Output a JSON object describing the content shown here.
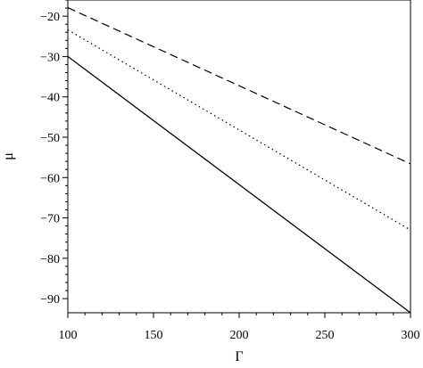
{
  "chart_data": {
    "type": "line",
    "title": "",
    "xlabel": "Γ",
    "ylabel": "μ",
    "xlim": [
      100,
      300
    ],
    "ylim": [
      -93.5,
      -16
    ],
    "x_ticks": [
      100,
      150,
      200,
      250,
      300
    ],
    "y_ticks": [
      -20,
      -30,
      -40,
      -50,
      -60,
      -70,
      -80,
      -90
    ],
    "x_tick_labels": [
      "100",
      "150",
      "200",
      "250",
      "300"
    ],
    "y_tick_labels": [
      "−20",
      "−30",
      "−40",
      "−50",
      "−60",
      "−70",
      "−80",
      "−90"
    ],
    "grid": false,
    "legend": "none",
    "series": [
      {
        "style": "dashed",
        "color": "#000000",
        "x": [
          100,
          300
        ],
        "y": [
          -17.9,
          -56.6
        ]
      },
      {
        "style": "dotted",
        "color": "#000000",
        "x": [
          100,
          300
        ],
        "y": [
          -23.4,
          -73.0
        ]
      },
      {
        "style": "solid",
        "color": "#000000",
        "x": [
          100,
          300
        ],
        "y": [
          -30.0,
          -93.5
        ]
      }
    ]
  }
}
